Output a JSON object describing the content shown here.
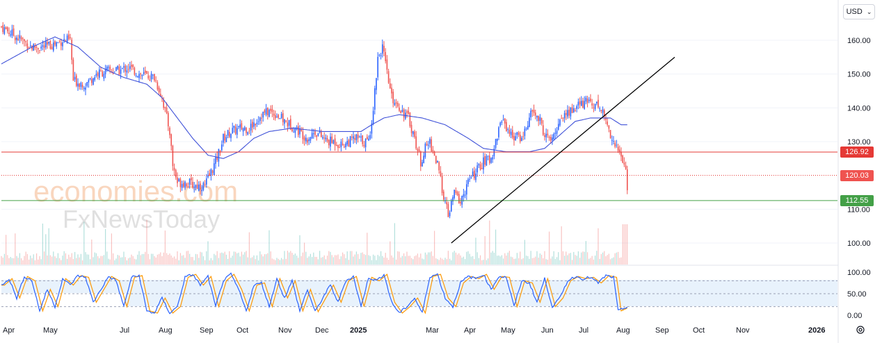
{
  "currency": {
    "label": "USD",
    "chevron_icon": "chevron-down-icon"
  },
  "watermark": {
    "line1": "economies.com",
    "line2": "FxNewsToday"
  },
  "price_axis": {
    "ticks": [
      "160.00",
      "150.00",
      "140.00",
      "130.00",
      "110.00",
      "100.00"
    ]
  },
  "osc_axis": {
    "ticks": [
      "100.00",
      "50.00",
      "0.00"
    ]
  },
  "levels": [
    {
      "value": "126.92",
      "color": "#e53935",
      "style": "solid"
    },
    {
      "value": "120.03",
      "color": "#e53935",
      "style": "dotted"
    },
    {
      "value": "112.55",
      "color": "#43a047",
      "style": "solid"
    }
  ],
  "time_axis": [
    "Apr",
    "May",
    "Jul",
    "Aug",
    "Sep",
    "Oct",
    "Nov",
    "Dec",
    "2025",
    "Mar",
    "Apr",
    "May",
    "Jun",
    "Jul",
    "Aug",
    "Sep",
    "Oct",
    "Nov",
    "2026"
  ],
  "settings_icon": "gear-icon",
  "chart_data": {
    "type": "candlestick",
    "price_range": [
      95,
      167
    ],
    "close_anchors": [
      [
        0,
        164
      ],
      [
        10,
        161
      ],
      [
        20,
        158
      ],
      [
        28,
        158
      ],
      [
        35,
        159
      ],
      [
        40,
        160
      ],
      [
        45,
        160
      ],
      [
        47,
        148
      ],
      [
        55,
        147
      ],
      [
        62,
        150
      ],
      [
        70,
        151
      ],
      [
        77,
        151
      ],
      [
        83,
        152
      ],
      [
        90,
        150
      ],
      [
        100,
        149
      ],
      [
        105,
        143
      ],
      [
        110,
        133
      ],
      [
        112,
        123
      ],
      [
        115,
        118
      ],
      [
        120,
        118
      ],
      [
        127,
        117
      ],
      [
        133,
        117
      ],
      [
        140,
        124
      ],
      [
        145,
        131
      ],
      [
        150,
        133
      ],
      [
        157,
        134
      ],
      [
        162,
        134
      ],
      [
        170,
        138
      ],
      [
        175,
        139
      ],
      [
        180,
        138
      ],
      [
        185,
        136
      ],
      [
        192,
        134
      ],
      [
        200,
        131
      ],
      [
        205,
        133
      ],
      [
        213,
        130
      ],
      [
        218,
        130
      ],
      [
        222,
        129
      ],
      [
        227,
        130
      ],
      [
        232,
        131
      ],
      [
        237,
        130
      ],
      [
        240,
        130
      ],
      [
        243,
        140
      ],
      [
        246,
        155
      ],
      [
        249,
        158
      ],
      [
        252,
        150
      ],
      [
        255,
        143
      ],
      [
        259,
        141
      ],
      [
        262,
        139
      ],
      [
        266,
        137
      ],
      [
        270,
        131
      ],
      [
        274,
        124
      ],
      [
        277,
        128
      ],
      [
        280,
        130
      ],
      [
        285,
        123
      ],
      [
        289,
        114
      ],
      [
        292,
        108
      ],
      [
        296,
        115
      ],
      [
        300,
        112
      ],
      [
        305,
        118
      ],
      [
        310,
        121
      ],
      [
        315,
        124
      ],
      [
        320,
        125
      ],
      [
        327,
        137
      ],
      [
        333,
        132
      ],
      [
        340,
        131
      ],
      [
        347,
        139
      ],
      [
        352,
        136
      ],
      [
        355,
        132
      ],
      [
        360,
        130
      ],
      [
        365,
        137
      ],
      [
        372,
        139
      ],
      [
        378,
        141
      ],
      [
        385,
        142
      ],
      [
        392,
        140
      ],
      [
        395,
        136
      ],
      [
        400,
        130
      ],
      [
        402,
        128
      ],
      [
        405,
        126
      ],
      [
        408,
        121
      ],
      [
        409,
        117
      ]
    ],
    "ma": [
      [
        0,
        153
      ],
      [
        20,
        158
      ],
      [
        35,
        161
      ],
      [
        50,
        158
      ],
      [
        65,
        152
      ],
      [
        80,
        149
      ],
      [
        95,
        147
      ],
      [
        105,
        143
      ],
      [
        115,
        137
      ],
      [
        125,
        131
      ],
      [
        135,
        126
      ],
      [
        145,
        125
      ],
      [
        155,
        127
      ],
      [
        165,
        131
      ],
      [
        175,
        133
      ],
      [
        190,
        134
      ],
      [
        210,
        133
      ],
      [
        225,
        133
      ],
      [
        235,
        133
      ],
      [
        242,
        135
      ],
      [
        250,
        137
      ],
      [
        260,
        138
      ],
      [
        275,
        137
      ],
      [
        290,
        135
      ],
      [
        305,
        131
      ],
      [
        315,
        128
      ],
      [
        330,
        127
      ],
      [
        345,
        127
      ],
      [
        355,
        128
      ],
      [
        365,
        132
      ],
      [
        375,
        136
      ],
      [
        385,
        137
      ],
      [
        398,
        137
      ],
      [
        405,
        135
      ],
      [
        409,
        135
      ]
    ],
    "trendline": {
      "from": [
        294,
        100
      ],
      "to": [
        440,
        155
      ]
    },
    "stochastic": {
      "range": [
        0,
        100
      ],
      "levels": [
        80,
        50,
        20
      ],
      "k_anchors": [
        [
          0,
          70
        ],
        [
          5,
          85
        ],
        [
          10,
          40
        ],
        [
          15,
          90
        ],
        [
          20,
          80
        ],
        [
          25,
          10
        ],
        [
          30,
          60
        ],
        [
          35,
          20
        ],
        [
          40,
          85
        ],
        [
          45,
          70
        ],
        [
          50,
          92
        ],
        [
          55,
          88
        ],
        [
          60,
          30
        ],
        [
          65,
          60
        ],
        [
          70,
          90
        ],
        [
          75,
          80
        ],
        [
          80,
          20
        ],
        [
          85,
          88
        ],
        [
          90,
          92
        ],
        [
          95,
          10
        ],
        [
          100,
          5
        ],
        [
          105,
          40
        ],
        [
          110,
          5
        ],
        [
          115,
          20
        ],
        [
          120,
          88
        ],
        [
          125,
          95
        ],
        [
          130,
          70
        ],
        [
          135,
          90
        ],
        [
          140,
          20
        ],
        [
          145,
          80
        ],
        [
          150,
          95
        ],
        [
          155,
          60
        ],
        [
          160,
          10
        ],
        [
          165,
          70
        ],
        [
          170,
          75
        ],
        [
          175,
          20
        ],
        [
          180,
          85
        ],
        [
          185,
          40
        ],
        [
          190,
          80
        ],
        [
          195,
          10
        ],
        [
          200,
          60
        ],
        [
          205,
          8
        ],
        [
          210,
          40
        ],
        [
          215,
          70
        ],
        [
          220,
          30
        ],
        [
          225,
          80
        ],
        [
          230,
          90
        ],
        [
          235,
          20
        ],
        [
          240,
          88
        ],
        [
          245,
          80
        ],
        [
          250,
          95
        ],
        [
          255,
          30
        ],
        [
          260,
          5
        ],
        [
          265,
          20
        ],
        [
          270,
          40
        ],
        [
          275,
          5
        ],
        [
          280,
          90
        ],
        [
          285,
          95
        ],
        [
          290,
          40
        ],
        [
          295,
          20
        ],
        [
          300,
          75
        ],
        [
          305,
          90
        ],
        [
          310,
          85
        ],
        [
          315,
          95
        ],
        [
          320,
          60
        ],
        [
          325,
          90
        ],
        [
          330,
          88
        ],
        [
          335,
          20
        ],
        [
          340,
          80
        ],
        [
          345,
          75
        ],
        [
          350,
          30
        ],
        [
          355,
          85
        ],
        [
          360,
          20
        ],
        [
          365,
          40
        ],
        [
          370,
          80
        ],
        [
          375,
          90
        ],
        [
          380,
          85
        ],
        [
          385,
          88
        ],
        [
          390,
          75
        ],
        [
          395,
          92
        ],
        [
          400,
          88
        ],
        [
          403,
          10
        ],
        [
          406,
          15
        ],
        [
          409,
          20
        ]
      ]
    }
  }
}
